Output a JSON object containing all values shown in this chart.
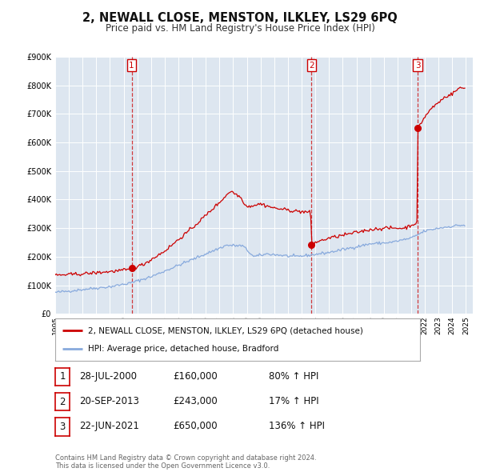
{
  "title": "2, NEWALL CLOSE, MENSTON, ILKLEY, LS29 6PQ",
  "subtitle": "Price paid vs. HM Land Registry's House Price Index (HPI)",
  "background_color": "#ffffff",
  "plot_bg_color": "#dde6f0",
  "grid_color": "#ffffff",
  "ylim": [
    0,
    900000
  ],
  "yticks": [
    0,
    100000,
    200000,
    300000,
    400000,
    500000,
    600000,
    700000,
    800000,
    900000
  ],
  "ytick_labels": [
    "£0",
    "£100K",
    "£200K",
    "£300K",
    "£400K",
    "£500K",
    "£600K",
    "£700K",
    "£800K",
    "£900K"
  ],
  "red_line_color": "#cc0000",
  "blue_line_color": "#88aadd",
  "sale_marker_color": "#cc0000",
  "sale_vline_color": "#cc0000",
  "sale_dates_decimal": [
    2000.581,
    2013.722,
    2021.472
  ],
  "sale_prices": [
    160000,
    243000,
    650000
  ],
  "sale_labels": [
    "1",
    "2",
    "3"
  ],
  "legend_label_red": "2, NEWALL CLOSE, MENSTON, ILKLEY, LS29 6PQ (detached house)",
  "legend_label_blue": "HPI: Average price, detached house, Bradford",
  "table_rows": [
    {
      "num": "1",
      "date": "28-JUL-2000",
      "price": "£160,000",
      "hpi": "80% ↑ HPI"
    },
    {
      "num": "2",
      "date": "20-SEP-2013",
      "price": "£243,000",
      "hpi": "17% ↑ HPI"
    },
    {
      "num": "3",
      "date": "22-JUN-2021",
      "price": "£650,000",
      "hpi": "136% ↑ HPI"
    }
  ],
  "footnote": "Contains HM Land Registry data © Crown copyright and database right 2024.\nThis data is licensed under the Open Government Licence v3.0.",
  "hpi_keypoints": [
    [
      1995.0,
      75000
    ],
    [
      1996.0,
      80000
    ],
    [
      1997.5,
      88000
    ],
    [
      1999.0,
      95000
    ],
    [
      2000.5,
      108000
    ],
    [
      2002.0,
      130000
    ],
    [
      2004.0,
      170000
    ],
    [
      2006.0,
      210000
    ],
    [
      2007.5,
      240000
    ],
    [
      2008.7,
      238000
    ],
    [
      2009.5,
      200000
    ],
    [
      2010.5,
      210000
    ],
    [
      2011.5,
      205000
    ],
    [
      2012.5,
      200000
    ],
    [
      2013.5,
      205000
    ],
    [
      2015.0,
      215000
    ],
    [
      2016.5,
      230000
    ],
    [
      2018.0,
      245000
    ],
    [
      2019.5,
      250000
    ],
    [
      2021.0,
      265000
    ],
    [
      2022.0,
      290000
    ],
    [
      2023.0,
      300000
    ],
    [
      2024.5,
      310000
    ]
  ],
  "red_keypoints": [
    [
      1995.0,
      135000
    ],
    [
      1997.0,
      140000
    ],
    [
      1999.0,
      148000
    ],
    [
      2000.5,
      155000
    ],
    [
      2001.5,
      175000
    ],
    [
      2003.0,
      220000
    ],
    [
      2005.0,
      300000
    ],
    [
      2007.0,
      390000
    ],
    [
      2007.8,
      430000
    ],
    [
      2008.5,
      410000
    ],
    [
      2009.0,
      375000
    ],
    [
      2010.0,
      385000
    ],
    [
      2011.0,
      370000
    ],
    [
      2012.5,
      360000
    ],
    [
      2013.65,
      355000
    ],
    [
      2013.75,
      243000
    ],
    [
      2014.0,
      250000
    ],
    [
      2015.0,
      265000
    ],
    [
      2016.5,
      280000
    ],
    [
      2018.0,
      295000
    ],
    [
      2019.0,
      300000
    ],
    [
      2020.5,
      300000
    ],
    [
      2021.45,
      320000
    ],
    [
      2021.5,
      650000
    ],
    [
      2022.0,
      690000
    ],
    [
      2022.5,
      720000
    ],
    [
      2023.0,
      740000
    ],
    [
      2023.5,
      760000
    ],
    [
      2024.0,
      770000
    ],
    [
      2024.5,
      790000
    ]
  ]
}
